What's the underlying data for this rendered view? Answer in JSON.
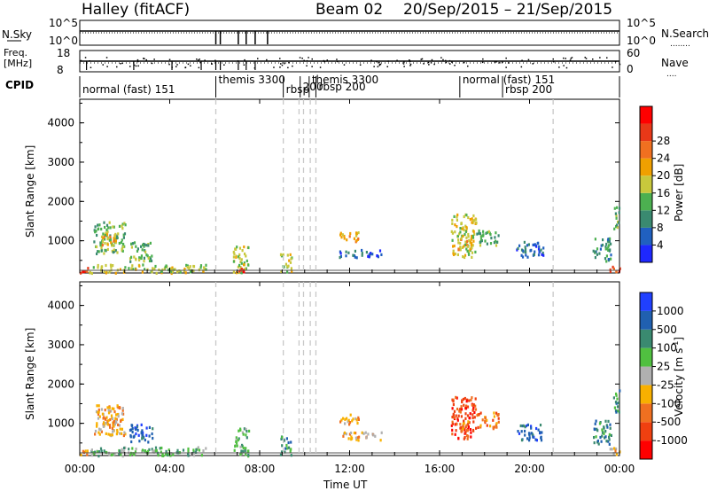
{
  "header": {
    "radar": "Halley (fitACF)",
    "beam": "Beam 02",
    "date_range": "20/Sep/2015 – 21/Sep/2015"
  },
  "small_panels": {
    "nsky_label": "N.Sky",
    "nsky_ticks": [
      "10^5",
      "10^0"
    ],
    "nsearch_label": "N.Search",
    "nsearch_ticks": [
      "10^5",
      "10^0"
    ],
    "freq_label": "Freq.",
    "freq_unit": "[MHz]",
    "freq_ticks": [
      "18",
      "8"
    ],
    "nave_label": "Nave",
    "nave_ticks": [
      "60",
      "0"
    ],
    "cpid_label": "CPID"
  },
  "cpid_segments": [
    {
      "label": "normal (fast) 151",
      "start": 0.0
    },
    {
      "label": "themis 3300",
      "start": 6.05
    },
    {
      "label": "rbsp",
      "start": 9.05
    },
    {
      "label": "200",
      "start": 9.8
    },
    {
      "label": "themis 3300",
      "start": 10.2
    },
    {
      "label": "rbsp 200",
      "start": 10.5
    },
    {
      "label": "normal (fast) 151",
      "start": 16.9
    },
    {
      "label": "rbsp 200",
      "start": 18.8
    }
  ],
  "colors": {
    "axis": "#000000",
    "dashed_line": "#c8c8c8",
    "ground_scatter": "#a0a0a0"
  },
  "chart_data": [
    {
      "type": "heatmap",
      "name": "power",
      "ylabel": "Slant Range [km]",
      "yticks": [
        "1000",
        "2000",
        "3000",
        "4000"
      ],
      "ylim": [
        180,
        4600
      ],
      "xlim": [
        0,
        24
      ],
      "colorbar": {
        "label": "Power [dB]",
        "ticks": [
          "4",
          "8",
          "12",
          "16",
          "20",
          "24",
          "28"
        ],
        "colors": [
          "#1e28ff",
          "#2060c0",
          "#3a8a70",
          "#4cb050",
          "#c8c83c",
          "#f0a000",
          "#f07020",
          "#e83818",
          "#ff0000"
        ]
      },
      "regions": [
        {
          "t0": 0.0,
          "t1": 0.4,
          "r0": 200,
          "r1": 380,
          "level": 7
        },
        {
          "t0": 0.6,
          "t1": 2.0,
          "r0": 700,
          "r1": 1500,
          "level": 3
        },
        {
          "t0": 0.9,
          "t1": 1.6,
          "r0": 900,
          "r1": 1200,
          "level": 5
        },
        {
          "t0": 2.2,
          "t1": 3.2,
          "r0": 500,
          "r1": 1000,
          "level": 3
        },
        {
          "t0": 0.3,
          "t1": 5.6,
          "r0": 200,
          "r1": 420,
          "level": 4
        },
        {
          "t0": 6.8,
          "t1": 7.5,
          "r0": 200,
          "r1": 900,
          "level": 4
        },
        {
          "t0": 7.0,
          "t1": 7.3,
          "r0": 200,
          "r1": 330,
          "level": 8
        },
        {
          "t0": 8.9,
          "t1": 9.4,
          "r0": 200,
          "r1": 700,
          "level": 4
        },
        {
          "t0": 11.5,
          "t1": 12.4,
          "r0": 1000,
          "r1": 1250,
          "level": 5
        },
        {
          "t0": 11.5,
          "t1": 13.4,
          "r0": 600,
          "r1": 800,
          "level": 1
        },
        {
          "t0": 16.5,
          "t1": 17.6,
          "r0": 600,
          "r1": 1700,
          "level": 4
        },
        {
          "t0": 16.8,
          "t1": 17.4,
          "r0": 800,
          "r1": 1100,
          "level": 5
        },
        {
          "t0": 17.6,
          "t1": 18.6,
          "r0": 900,
          "r1": 1300,
          "level": 3
        },
        {
          "t0": 19.4,
          "t1": 20.6,
          "r0": 600,
          "r1": 1000,
          "level": 1
        },
        {
          "t0": 22.8,
          "t1": 23.6,
          "r0": 500,
          "r1": 1100,
          "level": 2
        },
        {
          "t0": 23.5,
          "t1": 24.0,
          "r0": 200,
          "r1": 400,
          "level": 7
        },
        {
          "t0": 23.7,
          "t1": 24.0,
          "r0": 1300,
          "r1": 1900,
          "level": 3
        }
      ]
    },
    {
      "type": "heatmap",
      "name": "velocity",
      "ylabel": "Slant Range [km]",
      "yticks": [
        "1000",
        "2000",
        "3000",
        "4000"
      ],
      "ylim": [
        180,
        4600
      ],
      "xlim": [
        0,
        24
      ],
      "xticks": [
        "00:00",
        "04:00",
        "08:00",
        "12:00",
        "16:00",
        "20:00",
        "00:00"
      ],
      "xlabel": "Time UT",
      "colorbar": {
        "label": "Velocity [m s",
        "label_sup": "-1",
        "label_end": "]",
        "ticks": [
          "-1000",
          "-500",
          "-100",
          "-25",
          "25",
          "100",
          "500",
          "1000"
        ],
        "colors": [
          "#ff0000",
          "#f04010",
          "#f07020",
          "#f8b000",
          "#b0b0b0",
          "#50c040",
          "#3a8a70",
          "#2060b0",
          "#2040ff"
        ]
      },
      "regions": [
        {
          "t0": 0.0,
          "t1": 0.4,
          "r0": 200,
          "r1": 380,
          "level": 2
        },
        {
          "t0": 0.6,
          "t1": 2.0,
          "r0": 700,
          "r1": 1500,
          "level": 3
        },
        {
          "t0": 0.9,
          "t1": 1.6,
          "r0": 900,
          "r1": 1200,
          "level": 3
        },
        {
          "t0": 2.2,
          "t1": 3.2,
          "r0": 500,
          "r1": 1000,
          "level": 7
        },
        {
          "t0": 0.3,
          "t1": 5.6,
          "r0": 200,
          "r1": 420,
          "level": 5
        },
        {
          "t0": 6.8,
          "t1": 7.5,
          "r0": 200,
          "r1": 900,
          "level": 5
        },
        {
          "t0": 8.9,
          "t1": 9.4,
          "r0": 200,
          "r1": 700,
          "level": 6
        },
        {
          "t0": 11.5,
          "t1": 12.4,
          "r0": 1000,
          "r1": 1250,
          "level": 3
        },
        {
          "t0": 11.5,
          "t1": 13.4,
          "r0": 600,
          "r1": 800,
          "level": 3
        },
        {
          "t0": 16.5,
          "t1": 17.6,
          "r0": 600,
          "r1": 1700,
          "level": 1
        },
        {
          "t0": 16.8,
          "t1": 17.4,
          "r0": 800,
          "r1": 1100,
          "level": 2
        },
        {
          "t0": 17.6,
          "t1": 18.6,
          "r0": 900,
          "r1": 1300,
          "level": 2
        },
        {
          "t0": 19.4,
          "t1": 20.6,
          "r0": 600,
          "r1": 1000,
          "level": 7
        },
        {
          "t0": 22.8,
          "t1": 23.6,
          "r0": 500,
          "r1": 1100,
          "level": 6
        },
        {
          "t0": 23.5,
          "t1": 24.0,
          "r0": 200,
          "r1": 400,
          "level": 3
        },
        {
          "t0": 23.7,
          "t1": 24.0,
          "r0": 1300,
          "r1": 1900,
          "level": 6
        }
      ]
    }
  ],
  "dashed_times": [
    6.05,
    9.05,
    9.75,
    9.95,
    10.25,
    10.5,
    21.05
  ]
}
